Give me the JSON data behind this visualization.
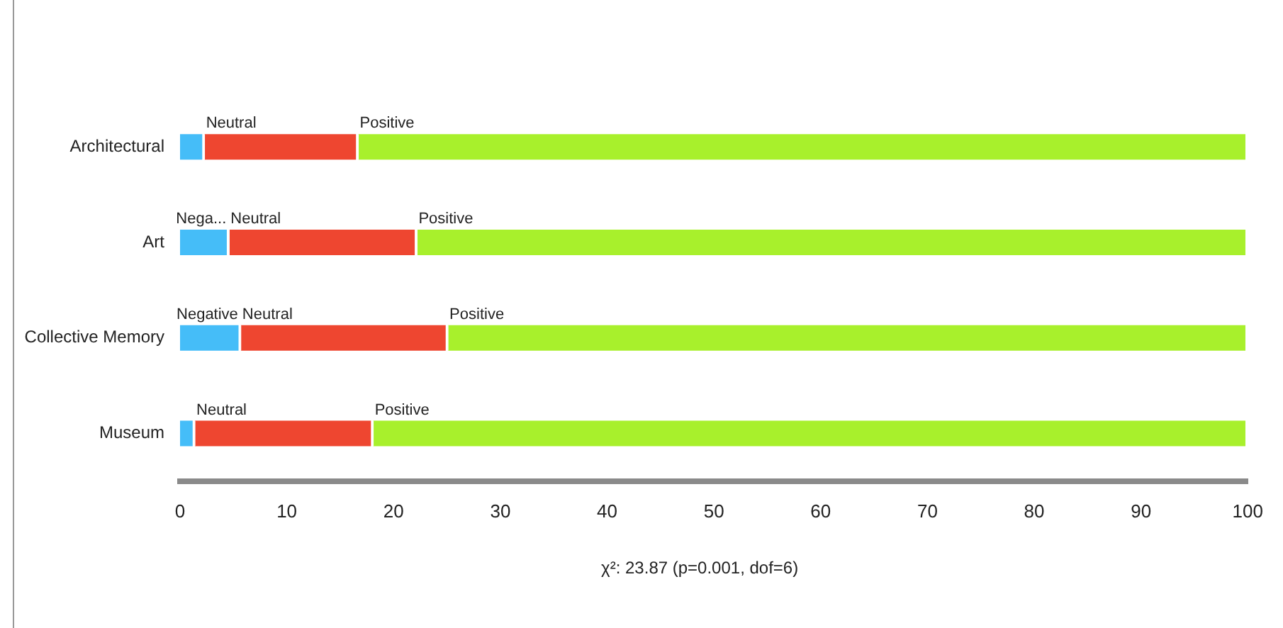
{
  "chart_data": {
    "type": "bar",
    "orientation": "horizontal",
    "stacked": true,
    "categories": [
      "Architectural",
      "Art",
      "Collective Memory",
      "Museum"
    ],
    "series": [
      {
        "color": "#45bdf8",
        "values": [
          2.3,
          4.6,
          5.7,
          1.4
        ],
        "value_labels": [
          null,
          "Nega...",
          "Negative",
          null
        ]
      },
      {
        "color": "#ee4630",
        "values": [
          14.4,
          17.6,
          19.4,
          16.7
        ],
        "value_labels": [
          "Neutral",
          "Neutral",
          "Neutral",
          "Neutral"
        ]
      },
      {
        "color": "#a8f02c",
        "values": [
          83.3,
          77.8,
          74.9,
          81.9
        ],
        "value_labels": [
          "Positive",
          "Positive",
          "Positive",
          "Positive"
        ]
      }
    ],
    "xlim": [
      0,
      100
    ],
    "xticks": [
      0,
      10,
      20,
      30,
      40,
      50,
      60,
      70,
      80,
      90,
      100
    ],
    "grid": false,
    "legend": false,
    "annotations": [
      "χ²: 23.87 (p=0.001, dof=6)"
    ]
  }
}
